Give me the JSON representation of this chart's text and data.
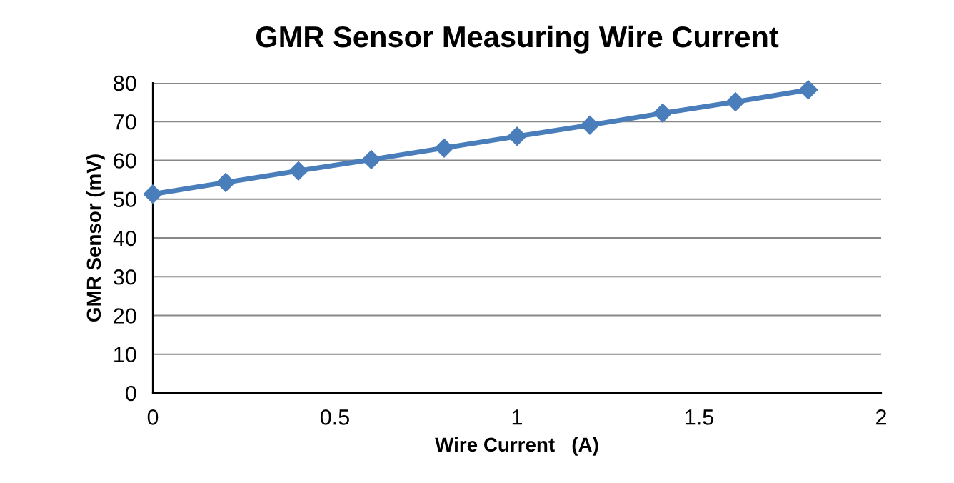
{
  "chart_data": {
    "type": "line",
    "title": "GMR Sensor Measuring Wire Current",
    "xlabel": "Wire Current   (A)",
    "ylabel": "GMR Sensor (mV)",
    "x": [
      0,
      0.2,
      0.4,
      0.6,
      0.8,
      1.0,
      1.2,
      1.4,
      1.6,
      1.8
    ],
    "series": [
      {
        "color": "#4a7ebb",
        "values": [
          51.3,
          54.3,
          57.3,
          60.2,
          63.2,
          66.2,
          69.1,
          72.2,
          75.1,
          78.2
        ]
      }
    ],
    "xlim": [
      0,
      2
    ],
    "xticks": [
      0,
      0.5,
      1,
      1.5,
      2
    ],
    "ylim": [
      0,
      80
    ],
    "yticks": [
      0,
      10,
      20,
      30,
      40,
      50,
      60,
      70,
      80
    ],
    "grid": "y",
    "marker": "diamond",
    "line_style": "solid",
    "legend": false
  }
}
